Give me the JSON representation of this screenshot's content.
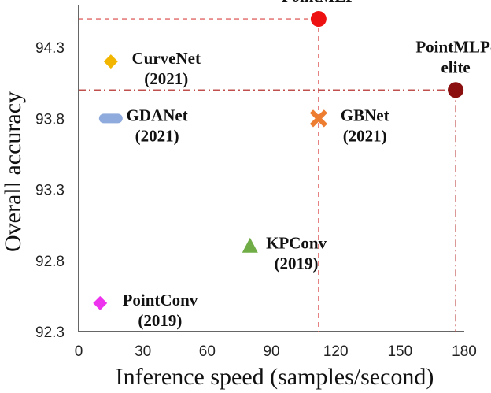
{
  "chart_data": {
    "type": "scatter",
    "title": "",
    "xlabel": "Inference speed (samples/second)",
    "ylabel": "Overall accuracy",
    "xlim": [
      0,
      180
    ],
    "ylim": [
      92.3,
      94.6
    ],
    "x_ticks": [
      "0",
      "30",
      "60",
      "90",
      "120",
      "150",
      "180"
    ],
    "y_ticks": [
      "92.3",
      "92.8",
      "93.3",
      "93.8",
      "94.3"
    ],
    "grid": false,
    "points": [
      {
        "name": "PointMLP",
        "label_lines": [
          "PointMLP"
        ],
        "x": 112,
        "y": 94.5,
        "marker": "circle",
        "color": "#ee1111",
        "label_pos": "above"
      },
      {
        "name": "PointMLP-elite",
        "label_lines": [
          "PointMLP-",
          "elite"
        ],
        "x": 176,
        "y": 94.0,
        "marker": "circle",
        "color": "#8b0f0f",
        "label_pos": "above"
      },
      {
        "name": "CurveNet",
        "label_lines": [
          "CurveNet",
          "(2021)"
        ],
        "x": 15,
        "y": 94.2,
        "marker": "diamond",
        "color": "#f2b600",
        "label_pos": "right"
      },
      {
        "name": "GDANet",
        "label_lines": [
          "GDANet",
          "(2021)"
        ],
        "x": 15,
        "y": 93.8,
        "marker": "dash",
        "color": "#8faadc",
        "label_pos": "right"
      },
      {
        "name": "GBNet",
        "label_lines": [
          "GBNet",
          "(2021)"
        ],
        "x": 112,
        "y": 93.8,
        "marker": "x",
        "color": "#ed7d31",
        "label_pos": "right"
      },
      {
        "name": "KPConv",
        "label_lines": [
          "KPConv",
          "(2019)"
        ],
        "x": 80,
        "y": 92.9,
        "marker": "triangle",
        "color": "#70ad47",
        "label_pos": "right"
      },
      {
        "name": "PointConv",
        "label_lines": [
          "PointConv",
          "(2019)"
        ],
        "x": 10,
        "y": 92.5,
        "marker": "diamond",
        "color": "#ee33ee",
        "label_pos": "right"
      }
    ],
    "reference_lines": [
      {
        "from": "PointMLP",
        "style": "dashed",
        "color": "#e06666"
      },
      {
        "from": "PointMLP-elite",
        "style": "dashdot",
        "color": "#c0504d"
      }
    ]
  }
}
